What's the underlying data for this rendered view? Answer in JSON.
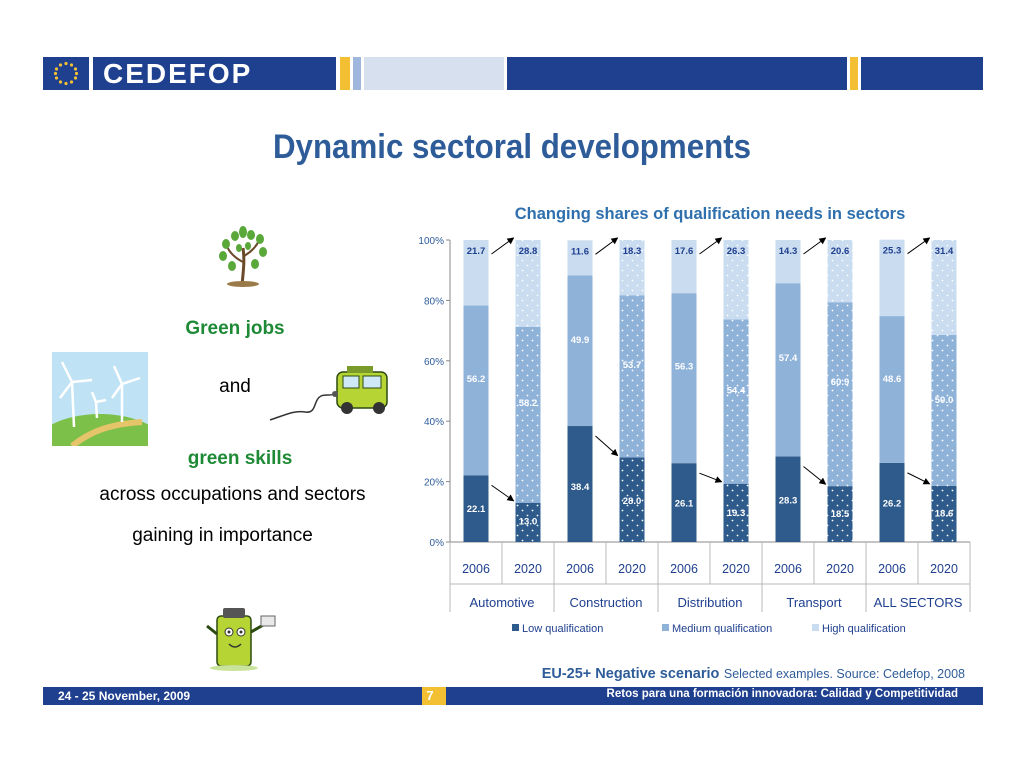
{
  "header": {
    "brand": "CEDEFOP"
  },
  "slide": {
    "title": "Dynamic sectoral developments",
    "left": {
      "green_jobs": "Green jobs",
      "and": "and",
      "green_skills": "green skills",
      "across": "across occupations and sectors",
      "gaining": "gaining in importance"
    }
  },
  "colors": {
    "low": "#2e5b8c",
    "medium": "#8fb2d9",
    "high": "#c9dcf0",
    "title": "#2e5c99",
    "green": "#1f8a36",
    "bar_dark": "#1f3f8f",
    "accent_yellow": "#f3c034"
  },
  "chart_data": {
    "type": "bar",
    "stacked": true,
    "percent": true,
    "title": "Changing shares of qualification needs in sectors",
    "groups": [
      "Automotive",
      "Construction",
      "Distribution",
      "Transport",
      "ALL SECTORS"
    ],
    "categories": [
      "2006",
      "2020",
      "2006",
      "2020",
      "2006",
      "2020",
      "2006",
      "2020",
      "2006",
      "2020"
    ],
    "series": [
      {
        "name": "Low qualification",
        "values": [
          22.1,
          13.0,
          38.4,
          28.0,
          26.1,
          19.3,
          28.3,
          18.5,
          26.2,
          18.6
        ]
      },
      {
        "name": "Medium qualification",
        "values": [
          56.2,
          58.2,
          49.9,
          53.7,
          56.3,
          54.4,
          57.4,
          60.9,
          48.6,
          50.0
        ]
      },
      {
        "name": "High qualification",
        "values": [
          21.7,
          28.8,
          11.6,
          18.3,
          17.6,
          26.3,
          14.3,
          20.6,
          25.3,
          31.4
        ]
      }
    ],
    "yticks": [
      "0%",
      "20%",
      "40%",
      "60%",
      "80%",
      "100%"
    ],
    "ylim": [
      0,
      100
    ],
    "legend_position": "bottom",
    "grid": false
  },
  "footnote": {
    "scenario": "EU-25+ Negative scenario",
    "source": "Selected examples. Source: Cedefop, 2008"
  },
  "footer": {
    "date": "24  - 25 November, 2009",
    "page": "7",
    "right": "Retos para una formación innovadora: Calidad y Competitividad"
  }
}
